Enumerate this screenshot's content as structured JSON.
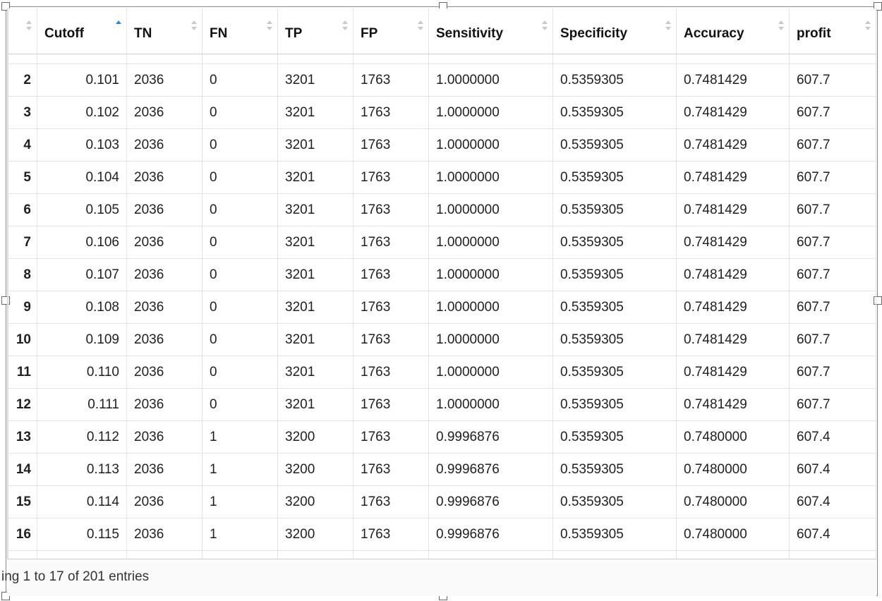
{
  "table": {
    "columns": [
      {
        "label": "",
        "sort": "none"
      },
      {
        "label": "Cutoff",
        "sort": "asc"
      },
      {
        "label": "TN",
        "sort": "none"
      },
      {
        "label": "FN",
        "sort": "none"
      },
      {
        "label": "TP",
        "sort": "none"
      },
      {
        "label": "FP",
        "sort": "none"
      },
      {
        "label": "Sensitivity",
        "sort": "none"
      },
      {
        "label": "Specificity",
        "sort": "none"
      },
      {
        "label": "Accuracy",
        "sort": "none"
      },
      {
        "label": "profit",
        "sort": "none"
      }
    ],
    "rows": [
      [
        "2",
        "0.101",
        "2036",
        "0",
        "3201",
        "1763",
        "1.0000000",
        "0.5359305",
        "0.7481429",
        "607.7"
      ],
      [
        "3",
        "0.102",
        "2036",
        "0",
        "3201",
        "1763",
        "1.0000000",
        "0.5359305",
        "0.7481429",
        "607.7"
      ],
      [
        "4",
        "0.103",
        "2036",
        "0",
        "3201",
        "1763",
        "1.0000000",
        "0.5359305",
        "0.7481429",
        "607.7"
      ],
      [
        "5",
        "0.104",
        "2036",
        "0",
        "3201",
        "1763",
        "1.0000000",
        "0.5359305",
        "0.7481429",
        "607.7"
      ],
      [
        "6",
        "0.105",
        "2036",
        "0",
        "3201",
        "1763",
        "1.0000000",
        "0.5359305",
        "0.7481429",
        "607.7"
      ],
      [
        "7",
        "0.106",
        "2036",
        "0",
        "3201",
        "1763",
        "1.0000000",
        "0.5359305",
        "0.7481429",
        "607.7"
      ],
      [
        "8",
        "0.107",
        "2036",
        "0",
        "3201",
        "1763",
        "1.0000000",
        "0.5359305",
        "0.7481429",
        "607.7"
      ],
      [
        "9",
        "0.108",
        "2036",
        "0",
        "3201",
        "1763",
        "1.0000000",
        "0.5359305",
        "0.7481429",
        "607.7"
      ],
      [
        "10",
        "0.109",
        "2036",
        "0",
        "3201",
        "1763",
        "1.0000000",
        "0.5359305",
        "0.7481429",
        "607.7"
      ],
      [
        "11",
        "0.110",
        "2036",
        "0",
        "3201",
        "1763",
        "1.0000000",
        "0.5359305",
        "0.7481429",
        "607.7"
      ],
      [
        "12",
        "0.111",
        "2036",
        "0",
        "3201",
        "1763",
        "1.0000000",
        "0.5359305",
        "0.7481429",
        "607.7"
      ],
      [
        "13",
        "0.112",
        "2036",
        "1",
        "3200",
        "1763",
        "0.9996876",
        "0.5359305",
        "0.7480000",
        "607.4"
      ],
      [
        "14",
        "0.113",
        "2036",
        "1",
        "3200",
        "1763",
        "0.9996876",
        "0.5359305",
        "0.7480000",
        "607.4"
      ],
      [
        "15",
        "0.114",
        "2036",
        "1",
        "3200",
        "1763",
        "0.9996876",
        "0.5359305",
        "0.7480000",
        "607.4"
      ],
      [
        "16",
        "0.115",
        "2036",
        "1",
        "3200",
        "1763",
        "0.9996876",
        "0.5359305",
        "0.7480000",
        "607.4"
      ]
    ]
  },
  "footer": {
    "info_text": "ing 1 to 17 of 201 entries"
  }
}
